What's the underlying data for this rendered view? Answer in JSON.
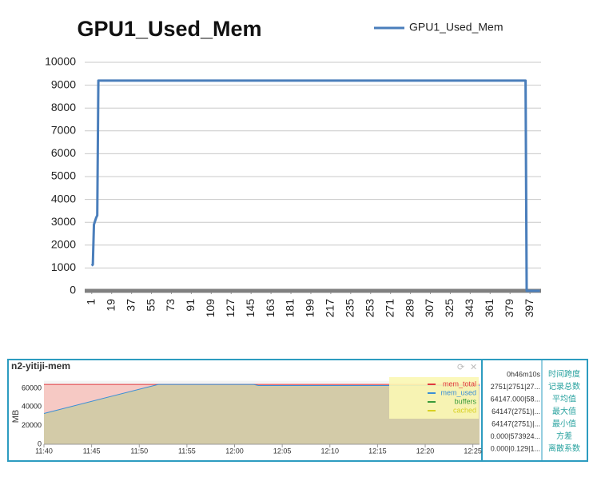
{
  "chart_data": [
    {
      "type": "line",
      "title": "GPU1_Used_Mem",
      "x": [
        1,
        2,
        3,
        5,
        6,
        7,
        393,
        394,
        406
      ],
      "series": [
        {
          "name": "GPU1_Used_Mem",
          "color": "#4a7ebb",
          "values": [
            1100,
            1150,
            2900,
            3200,
            3300,
            9200,
            9200,
            0,
            0
          ]
        }
      ],
      "xlim": [
        -1,
        407
      ],
      "xticks": [
        1,
        19,
        37,
        55,
        73,
        91,
        109,
        127,
        145,
        163,
        181,
        199,
        217,
        235,
        253,
        271,
        289,
        307,
        325,
        343,
        361,
        379,
        397
      ],
      "ylim": [
        0,
        10000
      ],
      "yticks": [
        0,
        1000,
        2000,
        3000,
        4000,
        5000,
        6000,
        7000,
        8000,
        9000,
        10000
      ],
      "grid": true
    },
    {
      "type": "area",
      "title": "n2-yitiji-mem",
      "y_label": "MB",
      "x": [
        700,
        712,
        722,
        722.5,
        745.7
      ],
      "series": [
        {
          "name": "mem_total",
          "color": "#e0393e",
          "fill": "#f6c9c4",
          "values": [
            64147,
            64147,
            64147,
            64147,
            64147
          ]
        },
        {
          "name": "mem_used",
          "color": "#3b8fd6",
          "fill": "#d3cba8",
          "values": [
            33000,
            64147,
            64147,
            63000,
            63000
          ]
        },
        {
          "name": "buffers",
          "color": "#3a9a3a",
          "fill": "none",
          "values": [
            0,
            0,
            0,
            0,
            0
          ]
        },
        {
          "name": "cached",
          "color": "#d8d020",
          "fill": "none",
          "values": [
            0,
            0,
            0,
            0,
            0
          ]
        }
      ],
      "xlim": [
        700,
        745.7
      ],
      "xticks": [
        {
          "value": 700,
          "label": "11:40"
        },
        {
          "value": 705,
          "label": "11:45"
        },
        {
          "value": 710,
          "label": "11:50"
        },
        {
          "value": 715,
          "label": "11:55"
        },
        {
          "value": 720,
          "label": "12:00"
        },
        {
          "value": 725,
          "label": "12:05"
        },
        {
          "value": 730,
          "label": "12:10"
        },
        {
          "value": 735,
          "label": "12:15"
        },
        {
          "value": 740,
          "label": "12:20"
        },
        {
          "value": 745,
          "label": "12:25"
        }
      ],
      "ylim": [
        0,
        68000
      ],
      "yticks": [
        0,
        20000,
        40000,
        60000
      ],
      "grid": false
    }
  ],
  "stats_table": {
    "rows": [
      [
        "0h46m10s",
        "时间跨度"
      ],
      [
        "2751|2751|27...",
        "记录总数"
      ],
      [
        "64147.000|58...",
        "平均值"
      ],
      [
        "64147(2751)|...",
        "最大值"
      ],
      [
        "64147(2751)|...",
        "最小值"
      ],
      [
        "0.000|573924...",
        "方差"
      ],
      [
        "0.000|0.129|1...",
        "离散系数"
      ]
    ]
  }
}
